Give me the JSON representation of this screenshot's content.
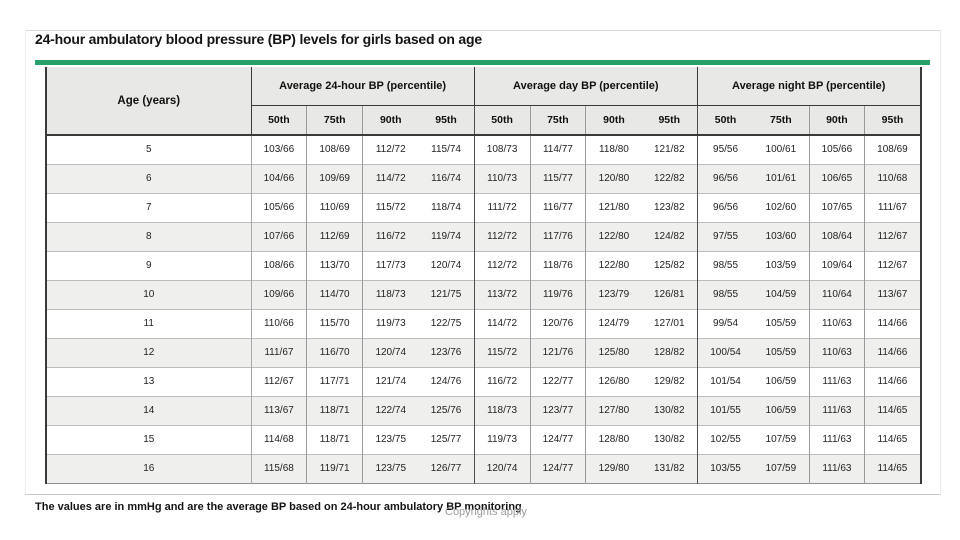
{
  "page": {
    "title": "24-hour ambulatory blood pressure (BP) levels for girls based on age",
    "footnote": "The values are in mmHg and are the average BP based on 24-hour ambulatory BP monitoring",
    "watermark": "Copyrights apply"
  },
  "colors": {
    "accent_rule_green": "#27a06a",
    "header_bg": "#e8e8e6",
    "alt_row_bg": "#efefed"
  },
  "table": {
    "age_header": "Age (years)",
    "groups": [
      "Average 24-hour BP (percentile)",
      "Average day BP (percentile)",
      "Average night BP (percentile)"
    ],
    "percentiles": [
      "50th",
      "75th",
      "90th",
      "95th"
    ],
    "rows": [
      {
        "age": "5",
        "values": [
          "103/66",
          "108/69",
          "112/72",
          "115/74",
          "108/73",
          "114/77",
          "118/80",
          "121/82",
          "95/56",
          "100/61",
          "105/66",
          "108/69"
        ]
      },
      {
        "age": "6",
        "values": [
          "104/66",
          "109/69",
          "114/72",
          "116/74",
          "110/73",
          "115/77",
          "120/80",
          "122/82",
          "96/56",
          "101/61",
          "106/65",
          "110/68"
        ]
      },
      {
        "age": "7",
        "values": [
          "105/66",
          "110/69",
          "115/72",
          "118/74",
          "111/72",
          "116/77",
          "121/80",
          "123/82",
          "96/56",
          "102/60",
          "107/65",
          "111/67"
        ]
      },
      {
        "age": "8",
        "values": [
          "107/66",
          "112/69",
          "116/72",
          "119/74",
          "112/72",
          "117/76",
          "122/80",
          "124/82",
          "97/55",
          "103/60",
          "108/64",
          "112/67"
        ]
      },
      {
        "age": "9",
        "values": [
          "108/66",
          "113/70",
          "117/73",
          "120/74",
          "112/72",
          "118/76",
          "122/80",
          "125/82",
          "98/55",
          "103/59",
          "109/64",
          "112/67"
        ]
      },
      {
        "age": "10",
        "values": [
          "109/66",
          "114/70",
          "118/73",
          "121/75",
          "113/72",
          "119/76",
          "123/79",
          "126/81",
          "98/55",
          "104/59",
          "110/64",
          "113/67"
        ]
      },
      {
        "age": "11",
        "values": [
          "110/66",
          "115/70",
          "119/73",
          "122/75",
          "114/72",
          "120/76",
          "124/79",
          "127/01",
          "99/54",
          "105/59",
          "110/63",
          "114/66"
        ]
      },
      {
        "age": "12",
        "values": [
          "111/67",
          "116/70",
          "120/74",
          "123/76",
          "115/72",
          "121/76",
          "125/80",
          "128/82",
          "100/54",
          "105/59",
          "110/63",
          "114/66"
        ]
      },
      {
        "age": "13",
        "values": [
          "112/67",
          "117/71",
          "121/74",
          "124/76",
          "116/72",
          "122/77",
          "126/80",
          "129/82",
          "101/54",
          "106/59",
          "111/63",
          "114/66"
        ]
      },
      {
        "age": "14",
        "values": [
          "113/67",
          "118/71",
          "122/74",
          "125/76",
          "118/73",
          "123/77",
          "127/80",
          "130/82",
          "101/55",
          "106/59",
          "111/63",
          "114/65"
        ]
      },
      {
        "age": "15",
        "values": [
          "114/68",
          "118/71",
          "123/75",
          "125/77",
          "119/73",
          "124/77",
          "128/80",
          "130/82",
          "102/55",
          "107/59",
          "111/63",
          "114/65"
        ]
      },
      {
        "age": "16",
        "values": [
          "115/68",
          "119/71",
          "123/75",
          "126/77",
          "120/74",
          "124/77",
          "129/80",
          "131/82",
          "103/55",
          "107/59",
          "111/63",
          "114/65"
        ]
      }
    ]
  }
}
